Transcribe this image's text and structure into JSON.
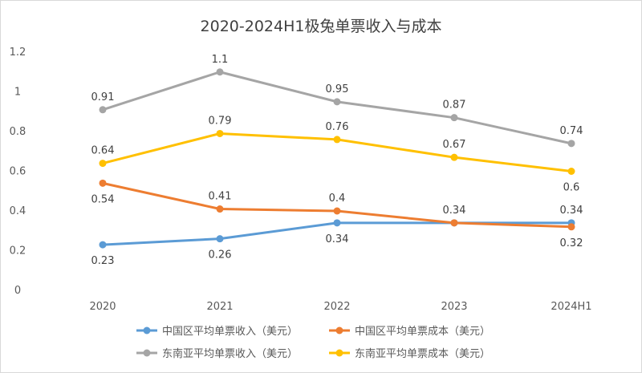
{
  "chart_data": {
    "type": "line",
    "title": "2020-2024H1极兔单票收入与成本",
    "categories": [
      "2020",
      "2021",
      "2022",
      "2023",
      "2024H1"
    ],
    "ylim": [
      0,
      1.2
    ],
    "yticks": [
      "0",
      "0.2",
      "0.4",
      "0.6",
      "0.8",
      "1",
      "1.2"
    ],
    "grid": false,
    "legend_position": "bottom",
    "series": [
      {
        "name": "中国区平均单票收入（美元）",
        "color": "#5b9bd5",
        "values": [
          0.23,
          0.26,
          0.34,
          0.34,
          0.34
        ],
        "labels": [
          "0.23",
          "0.26",
          "0.34",
          "",
          "0.34"
        ]
      },
      {
        "name": "中国区平均单票成本（美元）",
        "color": "#ed7d31",
        "values": [
          0.54,
          0.41,
          0.4,
          0.34,
          0.32
        ],
        "labels": [
          "0.54",
          "0.41",
          "0.4",
          "0.34",
          "0.32"
        ]
      },
      {
        "name": "东南亚平均单票收入（美元）",
        "color": "#a5a5a5",
        "values": [
          0.91,
          1.1,
          0.95,
          0.87,
          0.74
        ],
        "labels": [
          "0.91",
          "1.1",
          "0.95",
          "0.87",
          "0.74"
        ]
      },
      {
        "name": "东南亚平均单票成本（美元）",
        "color": "#ffc000",
        "values": [
          0.64,
          0.79,
          0.76,
          0.67,
          0.6
        ],
        "labels": [
          "0.64",
          "0.79",
          "0.76",
          "0.67",
          "0.6"
        ]
      }
    ]
  }
}
